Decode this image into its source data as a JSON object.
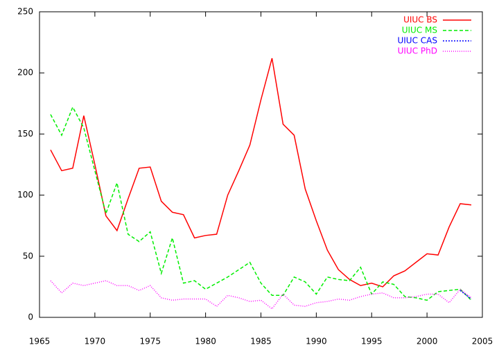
{
  "chart_data": {
    "type": "line",
    "x": [
      1966,
      1967,
      1968,
      1969,
      1970,
      1971,
      1972,
      1973,
      1974,
      1975,
      1976,
      1977,
      1978,
      1979,
      1980,
      1981,
      1982,
      1983,
      1984,
      1985,
      1986,
      1987,
      1988,
      1989,
      1990,
      1991,
      1992,
      1993,
      1994,
      1995,
      1996,
      1997,
      1998,
      1999,
      2000,
      2001,
      2002,
      2003,
      2004
    ],
    "series": [
      {
        "name": "UIUC BS",
        "color": "#ff0000",
        "dash": "none",
        "values": [
          137,
          120,
          122,
          165,
          125,
          83,
          71,
          97,
          122,
          123,
          95,
          86,
          84,
          65,
          67,
          68,
          100,
          120,
          141,
          178,
          212,
          158,
          149,
          105,
          79,
          55,
          39,
          31,
          26,
          28,
          25,
          34,
          38,
          45,
          52,
          51,
          74,
          93,
          92
        ]
      },
      {
        "name": "UIUC MS",
        "color": "#00ee00",
        "dash": "5,3",
        "values": [
          166,
          149,
          172,
          155,
          120,
          85,
          110,
          68,
          62,
          70,
          36,
          65,
          28,
          30,
          23,
          28,
          33,
          39,
          45,
          28,
          18,
          18,
          33,
          29,
          19,
          33,
          31,
          30,
          41,
          19,
          29,
          27,
          17,
          16,
          14,
          21,
          22,
          23,
          14
        ]
      },
      {
        "name": "UIUC CAS",
        "color": "#0000ff",
        "dash": "2,2",
        "values": [
          null,
          null,
          null,
          null,
          null,
          null,
          null,
          null,
          null,
          null,
          null,
          null,
          null,
          null,
          null,
          null,
          null,
          null,
          null,
          null,
          null,
          null,
          null,
          null,
          null,
          null,
          null,
          null,
          null,
          null,
          null,
          null,
          null,
          null,
          null,
          null,
          null,
          22,
          15
        ]
      },
      {
        "name": "UIUC PhD",
        "color": "#ff00ff",
        "dash": "1,2",
        "values": [
          30,
          20,
          28,
          26,
          28,
          30,
          26,
          26,
          22,
          26,
          16,
          14,
          15,
          15,
          15,
          9,
          18,
          16,
          13,
          14,
          7,
          19,
          10,
          9,
          12,
          13,
          15,
          14,
          17,
          19,
          20,
          16,
          16,
          17,
          19,
          19,
          12,
          23,
          16
        ]
      }
    ],
    "xlim": [
      1965,
      2005
    ],
    "xticks": [
      1965,
      1970,
      1975,
      1980,
      1985,
      1990,
      1995,
      2000,
      2005
    ],
    "ylim": [
      0,
      250
    ],
    "yticks": [
      0,
      50,
      100,
      150,
      200,
      250
    ],
    "legend": "top-right",
    "grid": false
  }
}
